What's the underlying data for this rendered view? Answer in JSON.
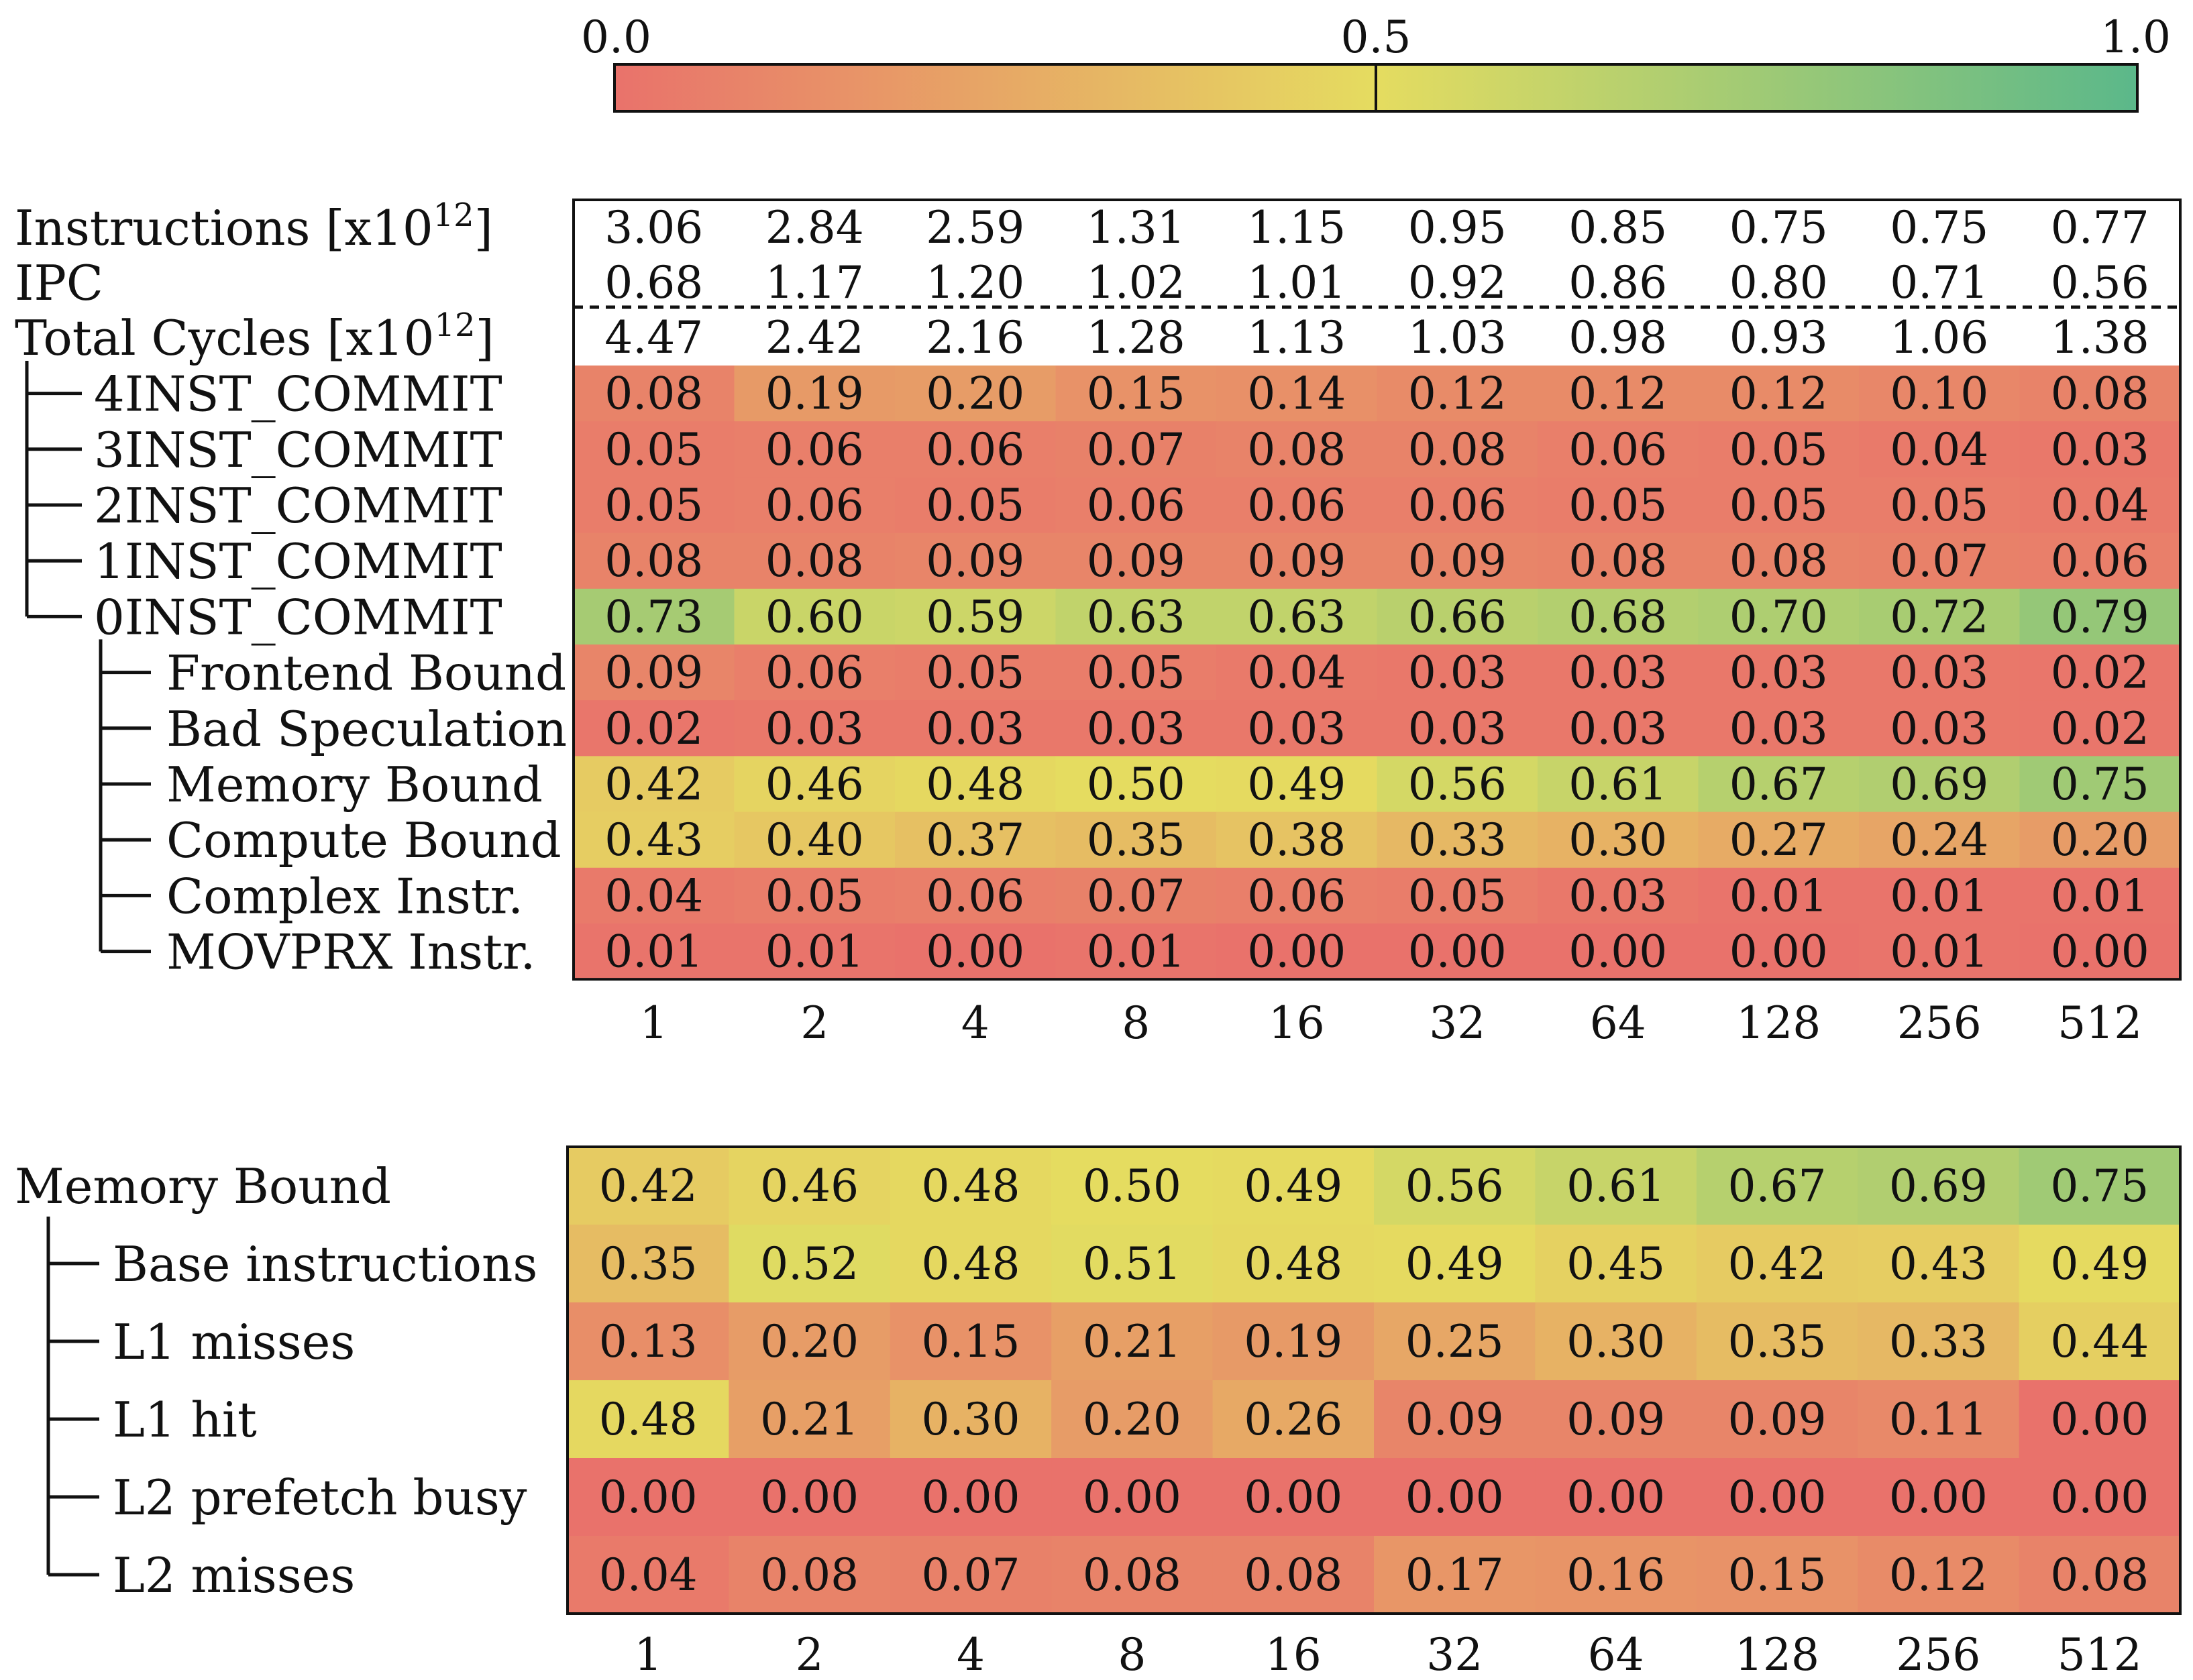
{
  "chart_data": [
    {
      "type": "heatmap",
      "colorbar": {
        "min": 0.0,
        "max": 1.0,
        "ticks": [
          "0.0",
          "0.5",
          "1.0"
        ],
        "colors": [
          "#e9726b",
          "#e5dc60",
          "#5bb88a"
        ]
      },
      "categories": [
        "1",
        "2",
        "4",
        "8",
        "16",
        "32",
        "64",
        "128",
        "256",
        "512"
      ],
      "info_rows": [
        {
          "label": "Instructions [x10",
          "sup": "12",
          "suffix": "]",
          "values": [
            "3.06",
            "2.84",
            "2.59",
            "1.31",
            "1.15",
            "0.95",
            "0.85",
            "0.75",
            "0.75",
            "0.77"
          ]
        },
        {
          "label": "IPC",
          "values": [
            "0.68",
            "1.17",
            "1.20",
            "1.02",
            "1.01",
            "0.92",
            "0.86",
            "0.80",
            "0.71",
            "0.56"
          ]
        },
        {
          "label": "Total Cycles [x10",
          "sup": "12",
          "suffix": "]",
          "values": [
            "4.47",
            "2.42",
            "2.16",
            "1.28",
            "1.13",
            "1.03",
            "0.98",
            "0.93",
            "1.06",
            "1.38"
          ]
        }
      ],
      "rows": [
        {
          "label": "4INST_COMMIT",
          "level": 1,
          "values": [
            0.08,
            0.19,
            0.2,
            0.15,
            0.14,
            0.12,
            0.12,
            0.12,
            0.1,
            0.08
          ]
        },
        {
          "label": "3INST_COMMIT",
          "level": 1,
          "values": [
            0.05,
            0.06,
            0.06,
            0.07,
            0.08,
            0.08,
            0.06,
            0.05,
            0.04,
            0.03
          ]
        },
        {
          "label": "2INST_COMMIT",
          "level": 1,
          "values": [
            0.05,
            0.06,
            0.05,
            0.06,
            0.06,
            0.06,
            0.05,
            0.05,
            0.05,
            0.04
          ]
        },
        {
          "label": "1INST_COMMIT",
          "level": 1,
          "values": [
            0.08,
            0.08,
            0.09,
            0.09,
            0.09,
            0.09,
            0.08,
            0.08,
            0.07,
            0.06
          ]
        },
        {
          "label": "0INST_COMMIT",
          "level": 1,
          "values": [
            0.73,
            0.6,
            0.59,
            0.63,
            0.63,
            0.66,
            0.68,
            0.7,
            0.72,
            0.79
          ]
        },
        {
          "label": "Frontend Bound",
          "level": 2,
          "values": [
            0.09,
            0.06,
            0.05,
            0.05,
            0.04,
            0.03,
            0.03,
            0.03,
            0.03,
            0.02
          ]
        },
        {
          "label": "Bad Speculation",
          "level": 2,
          "values": [
            0.02,
            0.03,
            0.03,
            0.03,
            0.03,
            0.03,
            0.03,
            0.03,
            0.03,
            0.02
          ]
        },
        {
          "label": "Memory Bound",
          "level": 2,
          "values": [
            0.42,
            0.46,
            0.48,
            0.5,
            0.49,
            0.56,
            0.61,
            0.67,
            0.69,
            0.75
          ]
        },
        {
          "label": "Compute Bound",
          "level": 2,
          "values": [
            0.43,
            0.4,
            0.37,
            0.35,
            0.38,
            0.33,
            0.3,
            0.27,
            0.24,
            0.2
          ]
        },
        {
          "label": "Complex Instr.",
          "level": 2,
          "values": [
            0.04,
            0.05,
            0.06,
            0.07,
            0.06,
            0.05,
            0.03,
            0.01,
            0.01,
            0.01
          ]
        },
        {
          "label": "MOVPRX Instr.",
          "level": 2,
          "values": [
            0.01,
            0.01,
            0.0,
            0.01,
            0.0,
            0.0,
            0.0,
            0.0,
            0.01,
            0.0
          ]
        }
      ]
    },
    {
      "type": "heatmap",
      "categories": [
        "1",
        "2",
        "4",
        "8",
        "16",
        "32",
        "64",
        "128",
        "256",
        "512"
      ],
      "rows": [
        {
          "label": "Memory Bound",
          "level": 0,
          "values": [
            0.42,
            0.46,
            0.48,
            0.5,
            0.49,
            0.56,
            0.61,
            0.67,
            0.69,
            0.75
          ]
        },
        {
          "label": "Base instructions",
          "level": 1,
          "values": [
            0.35,
            0.52,
            0.48,
            0.51,
            0.48,
            0.49,
            0.45,
            0.42,
            0.43,
            0.49
          ]
        },
        {
          "label": "L1 misses",
          "level": 1,
          "values": [
            0.13,
            0.2,
            0.15,
            0.21,
            0.19,
            0.25,
            0.3,
            0.35,
            0.33,
            0.44
          ]
        },
        {
          "label": "L1 hit",
          "level": 1,
          "values": [
            0.48,
            0.21,
            0.3,
            0.2,
            0.26,
            0.09,
            0.09,
            0.09,
            0.11,
            0.0
          ]
        },
        {
          "label": "L2 prefetch busy",
          "level": 1,
          "values": [
            0.0,
            0.0,
            0.0,
            0.0,
            0.0,
            0.0,
            0.0,
            0.0,
            0.0,
            0.0
          ]
        },
        {
          "label": "L2 misses",
          "level": 1,
          "values": [
            0.04,
            0.08,
            0.07,
            0.08,
            0.08,
            0.17,
            0.16,
            0.15,
            0.12,
            0.08
          ]
        }
      ]
    }
  ]
}
